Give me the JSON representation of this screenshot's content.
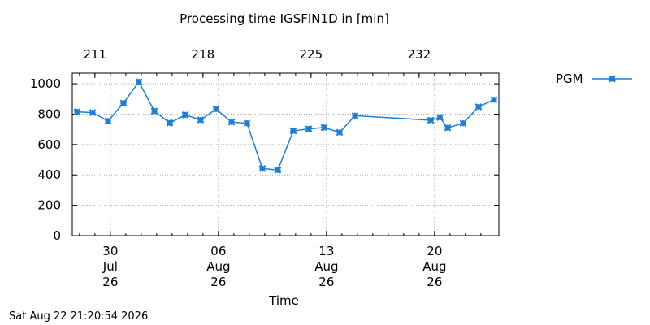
{
  "chart_data": {
    "type": "line",
    "title": "Processing time IGSFIN1D in [min]",
    "xlabel": "Time",
    "ylabel": "",
    "ylim": [
      0,
      1070
    ],
    "yticks": [
      0,
      200,
      400,
      600,
      800,
      1000
    ],
    "grid": true,
    "legend_position": "right",
    "x_range_days": [
      209.5,
      235.5
    ],
    "x_ticks": [
      {
        "day": 212,
        "lines": [
          "30",
          "Jul",
          "26"
        ]
      },
      {
        "day": 219,
        "lines": [
          "06",
          "Aug",
          "26"
        ]
      },
      {
        "day": 226,
        "lines": [
          "13",
          "Aug",
          "26"
        ]
      },
      {
        "day": 233,
        "lines": [
          "20",
          "Aug",
          "26"
        ]
      }
    ],
    "x2_ticks": [
      {
        "day": 211,
        "label": "211"
      },
      {
        "day": 218,
        "label": "218"
      },
      {
        "day": 225,
        "label": "225"
      },
      {
        "day": 232,
        "label": "232"
      }
    ],
    "series": [
      {
        "name": "PGM",
        "color": "#1a7fd9",
        "marker": "x-star",
        "points": [
          {
            "x": 209.85,
            "y": 815
          },
          {
            "x": 210.85,
            "y": 810
          },
          {
            "x": 211.85,
            "y": 755
          },
          {
            "x": 212.85,
            "y": 873
          },
          {
            "x": 213.85,
            "y": 1013
          },
          {
            "x": 214.85,
            "y": 820
          },
          {
            "x": 215.85,
            "y": 742
          },
          {
            "x": 216.85,
            "y": 795
          },
          {
            "x": 217.85,
            "y": 762
          },
          {
            "x": 218.85,
            "y": 833
          },
          {
            "x": 219.85,
            "y": 748
          },
          {
            "x": 220.85,
            "y": 740
          },
          {
            "x": 221.85,
            "y": 442
          },
          {
            "x": 222.85,
            "y": 432
          },
          {
            "x": 223.85,
            "y": 690
          },
          {
            "x": 224.85,
            "y": 703
          },
          {
            "x": 225.85,
            "y": 712
          },
          {
            "x": 226.85,
            "y": 680
          },
          {
            "x": 227.85,
            "y": 790
          },
          {
            "x": 232.75,
            "y": 760
          },
          {
            "x": 233.35,
            "y": 778
          },
          {
            "x": 233.85,
            "y": 710
          },
          {
            "x": 234.85,
            "y": 740
          },
          {
            "x": 235.85,
            "y": 848
          },
          {
            "x": 236.85,
            "y": 895
          }
        ]
      }
    ]
  },
  "footer": {
    "timestamp": "Sat Aug 22 21:20:54 2026"
  }
}
